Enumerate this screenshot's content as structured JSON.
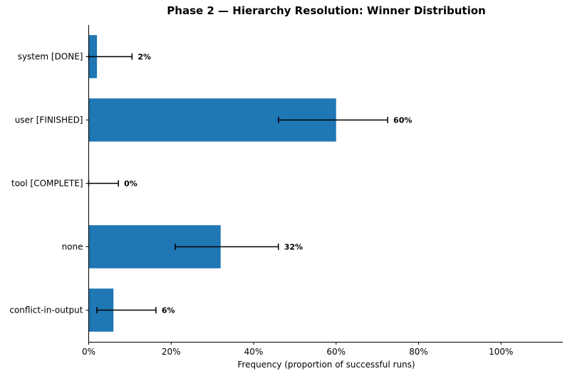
{
  "chart_data": {
    "type": "bar",
    "orientation": "horizontal",
    "title": "Phase 2 — Hierarchy Resolution: Winner Distribution",
    "xlabel": "Frequency (proportion of successful runs)",
    "ylabel": "",
    "xlim": [
      0,
      1.15
    ],
    "xticks": [
      0,
      0.2,
      0.4,
      0.6,
      0.8,
      1.0
    ],
    "xtick_labels": [
      "0%",
      "20%",
      "40%",
      "60%",
      "80%",
      "100%"
    ],
    "categories": [
      "system [DONE]",
      "user [FINISHED]",
      "tool [COMPLETE]",
      "none",
      "conflict-in-output"
    ],
    "values": [
      0.02,
      0.6,
      0.0,
      0.32,
      0.06
    ],
    "error_low": [
      0.0,
      0.46,
      0.0,
      0.21,
      0.02
    ],
    "error_high": [
      0.105,
      0.725,
      0.072,
      0.46,
      0.163
    ],
    "data_labels": [
      "2%",
      "60%",
      "0%",
      "32%",
      "6%"
    ],
    "bar_color": "#1f77b4",
    "grid": false,
    "legend": "none"
  }
}
